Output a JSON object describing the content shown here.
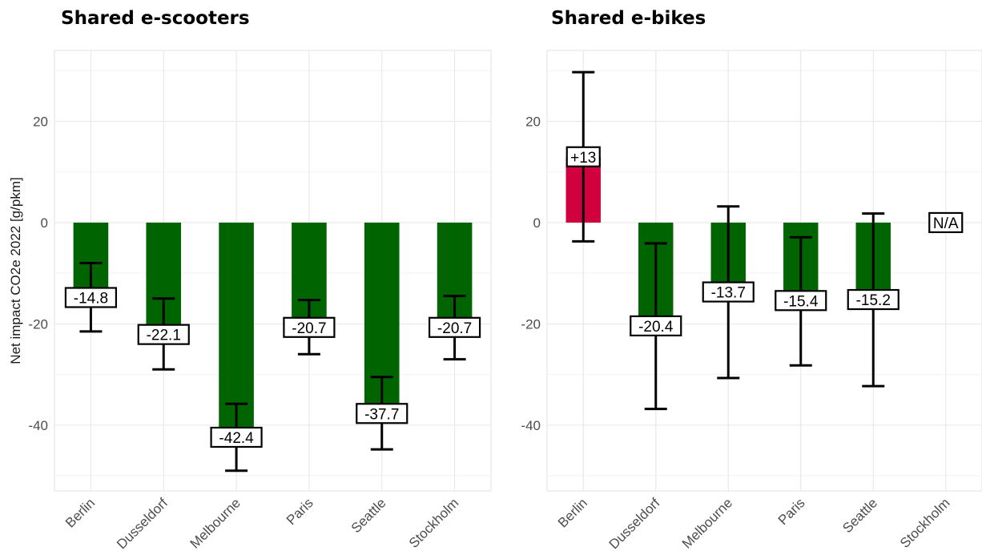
{
  "chart_data": [
    {
      "type": "bar",
      "title": "Shared e-scooters",
      "ylabel": "Net impact CO2e 2022 [g/pkm]",
      "xlabel": "",
      "categories": [
        "Berlin",
        "Dusseldorf",
        "Melbourne",
        "Paris",
        "Seattle",
        "Stockholm"
      ],
      "values": [
        -14.8,
        -22.1,
        -42.4,
        -20.7,
        -37.7,
        -20.7
      ],
      "labels": [
        "-14.8",
        "-22.1",
        "-42.4",
        "-20.7",
        "-37.7",
        "-20.7"
      ],
      "error_low": [
        -21.5,
        -29.0,
        -49.0,
        -26.0,
        -44.8,
        -27.0
      ],
      "error_high": [
        -8.0,
        -15.0,
        -35.8,
        -15.3,
        -30.5,
        -14.5
      ],
      "bar_colors": [
        "#006400",
        "#006400",
        "#006400",
        "#006400",
        "#006400",
        "#006400"
      ],
      "ylim": [
        -53,
        34
      ],
      "yticks": [
        -40,
        -20,
        0,
        20
      ],
      "grid": true
    },
    {
      "type": "bar",
      "title": "Shared e-bikes",
      "ylabel": "",
      "xlabel": "",
      "categories": [
        "Berlin",
        "Dusseldorf",
        "Melbourne",
        "Paris",
        "Seattle",
        "Stockholm"
      ],
      "values": [
        13,
        -20.4,
        -13.7,
        -15.4,
        -15.2,
        null
      ],
      "labels": [
        "+13",
        "-20.4",
        "-13.7",
        "-15.4",
        "-15.2",
        "N/A"
      ],
      "error_low": [
        -3.7,
        -36.8,
        -30.7,
        -28.2,
        -32.3,
        null
      ],
      "error_high": [
        29.7,
        -4.1,
        3.2,
        -2.9,
        1.8,
        null
      ],
      "bar_colors": [
        "#d1003f",
        "#006400",
        "#006400",
        "#006400",
        "#006400",
        "#006400"
      ],
      "ylim": [
        -53,
        34
      ],
      "yticks": [
        -40,
        -20,
        0,
        20
      ],
      "grid": true
    }
  ]
}
